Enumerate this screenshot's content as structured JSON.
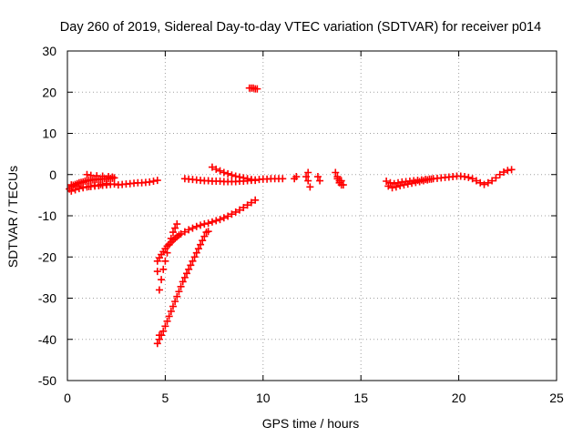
{
  "chart_data": {
    "type": "scatter",
    "title": "Day 260 of 2019, Sidereal Day-to-day VTEC variation (SDTVAR) for receiver p014",
    "xlabel": "GPS time / hours",
    "ylabel": "SDTVAR / TECUs",
    "xlim": [
      0,
      25
    ],
    "ylim": [
      -50,
      30
    ],
    "x_ticks": [
      0,
      5,
      10,
      15,
      20,
      25
    ],
    "y_ticks": [
      -50,
      -40,
      -30,
      -20,
      -10,
      0,
      10,
      20,
      30
    ],
    "grid": true,
    "marker": "plus",
    "marker_color": "#ff0000",
    "series": [
      {
        "x": [
          0.1,
          0.2,
          0.3,
          0.4,
          0.5,
          0.6,
          0.7,
          0.8,
          0.9,
          1.0,
          1.1,
          1.2,
          1.3,
          1.4,
          1.5,
          1.6,
          1.7,
          1.8,
          1.9,
          2.0,
          2.1,
          2.2,
          2.3,
          2.4,
          2.6,
          2.8,
          3.0,
          3.2,
          3.4,
          3.6,
          3.8,
          4.0,
          4.2,
          4.4,
          4.6,
          0.2,
          0.4,
          0.6,
          0.8,
          1.0,
          1.2,
          1.4,
          1.6,
          1.8,
          2.0,
          2.2,
          2.4,
          0.2,
          0.5,
          0.8,
          1.1,
          1.4,
          1.7,
          2.0,
          1.0,
          1.2,
          1.5,
          1.8,
          2.1,
          2.3,
          4.6,
          4.7,
          4.8,
          4.9,
          5.0,
          5.1,
          5.2,
          5.3,
          5.4,
          5.5,
          5.6,
          5.7,
          5.8,
          6.0,
          6.2,
          6.4,
          6.6,
          6.8,
          7.0,
          7.2,
          7.4,
          7.6,
          7.8,
          8.0,
          8.2,
          8.4,
          8.6,
          8.8,
          9.0,
          9.2,
          9.4,
          9.6,
          4.6,
          4.7,
          4.8,
          4.9,
          5.0,
          5.1,
          5.2,
          5.3,
          5.4,
          5.5,
          5.6,
          5.7,
          5.8,
          5.9,
          6.0,
          6.1,
          6.2,
          6.3,
          6.4,
          6.5,
          6.6,
          6.7,
          6.8,
          6.9,
          7.0,
          7.1,
          7.2,
          4.7,
          4.8,
          4.9,
          5.0,
          5.1,
          5.2,
          5.3,
          5.4,
          5.5,
          5.6,
          4.6,
          4.7,
          6.0,
          6.2,
          6.4,
          6.6,
          6.8,
          7.0,
          7.2,
          7.4,
          7.6,
          7.8,
          8.0,
          8.2,
          8.4,
          8.6,
          8.8,
          9.0,
          9.2,
          9.4,
          9.6,
          9.8,
          10.0,
          10.2,
          10.4,
          10.6,
          10.8,
          11.0,
          7.4,
          7.6,
          7.8,
          8.0,
          8.2,
          8.4,
          8.6,
          8.8,
          9.0,
          9.2,
          9.4,
          9.6,
          9.3,
          9.4,
          9.5,
          9.6,
          9.7,
          11.6,
          11.7,
          12.2,
          12.3,
          12.3,
          12.4,
          12.8,
          12.9,
          13.7,
          13.8,
          13.9,
          14.0,
          14.1,
          13.8,
          13.9,
          14.0,
          16.3,
          16.5,
          16.7,
          16.9,
          17.1,
          17.3,
          17.5,
          17.7,
          17.9,
          18.1,
          18.3,
          18.5,
          18.7,
          18.9,
          19.1,
          19.3,
          19.5,
          19.7,
          19.9,
          20.1,
          20.3,
          20.5,
          20.7,
          20.9,
          21.1,
          21.3,
          21.5,
          21.7,
          21.9,
          22.1,
          22.3,
          22.5,
          22.7,
          16.4,
          16.6,
          16.8,
          17.0,
          17.2,
          17.4,
          17.6,
          17.8,
          18.0,
          18.2,
          18.4,
          18.6
        ],
        "y": [
          -3.5,
          -3.0,
          -2.6,
          -2.4,
          -2.2,
          -2.0,
          -1.9,
          -1.8,
          -1.6,
          -1.5,
          -1.4,
          -1.3,
          -1.3,
          -1.2,
          -1.2,
          -1.2,
          -1.1,
          -1.1,
          -1.0,
          -1.0,
          -1.0,
          -0.9,
          -0.9,
          -0.8,
          -2.5,
          -2.4,
          -2.3,
          -2.2,
          -2.1,
          -2.0,
          -2.0,
          -1.9,
          -1.8,
          -1.6,
          -1.4,
          -4.0,
          -3.7,
          -3.4,
          -3.2,
          -3.0,
          -2.9,
          -2.8,
          -2.7,
          -2.6,
          -2.5,
          -2.4,
          -2.3,
          -2.5,
          -2.8,
          -3.0,
          -2.9,
          -2.6,
          -2.4,
          -2.2,
          0.0,
          -0.2,
          -0.3,
          -0.4,
          -0.5,
          -0.6,
          -21.0,
          -20.2,
          -19.4,
          -18.7,
          -18.0,
          -17.4,
          -16.9,
          -16.4,
          -15.9,
          -15.5,
          -15.1,
          -14.7,
          -14.4,
          -13.9,
          -13.4,
          -13.0,
          -12.6,
          -12.3,
          -12.0,
          -11.8,
          -11.5,
          -11.2,
          -10.9,
          -10.5,
          -10.1,
          -9.6,
          -9.1,
          -8.6,
          -8.0,
          -7.4,
          -6.8,
          -6.2,
          -41.0,
          -40.0,
          -39.0,
          -38.0,
          -36.8,
          -35.6,
          -34.4,
          -33.2,
          -32.0,
          -30.8,
          -29.6,
          -28.4,
          -27.2,
          -26.0,
          -25.0,
          -24.0,
          -23.0,
          -22.0,
          -21.0,
          -20.0,
          -19.0,
          -18.0,
          -17.0,
          -16.0,
          -15.0,
          -14.0,
          -13.8,
          -28.0,
          -25.5,
          -23.0,
          -21.0,
          -19.0,
          -17.0,
          -15.5,
          -14.0,
          -13.0,
          -12.0,
          -23.5,
          -39.0,
          -1.0,
          -1.1,
          -1.2,
          -1.3,
          -1.4,
          -1.5,
          -1.5,
          -1.6,
          -1.6,
          -1.6,
          -1.7,
          -1.7,
          -1.7,
          -1.7,
          -1.6,
          -1.6,
          -1.5,
          -1.4,
          -1.3,
          -1.2,
          -1.1,
          -1.1,
          -1.0,
          -1.0,
          -1.0,
          -1.0,
          1.8,
          1.3,
          0.9,
          0.5,
          0.2,
          -0.1,
          -0.4,
          -0.6,
          -0.8,
          -1.0,
          -1.2,
          -1.4,
          21.0,
          21.0,
          21.0,
          20.8,
          20.8,
          -1.0,
          -0.5,
          -0.5,
          0.5,
          -1.5,
          -3.0,
          -0.5,
          -1.5,
          0.5,
          -1.0,
          -2.0,
          -1.5,
          -2.5,
          -0.5,
          -1.5,
          -2.5,
          -1.6,
          -2.0,
          -2.2,
          -2.0,
          -1.8,
          -1.7,
          -1.6,
          -1.5,
          -1.4,
          -1.3,
          -1.2,
          -1.1,
          -1.0,
          -0.9,
          -0.8,
          -0.7,
          -0.6,
          -0.5,
          -0.4,
          -0.4,
          -0.5,
          -0.7,
          -1.0,
          -1.5,
          -2.0,
          -2.4,
          -2.0,
          -1.5,
          -0.8,
          0.0,
          0.6,
          1.0,
          1.2,
          -2.8,
          -3.2,
          -3.0,
          -2.7,
          -2.5,
          -2.3,
          -2.1,
          -1.9,
          -1.7,
          -1.5,
          -1.3,
          -1.1
        ]
      }
    ]
  }
}
